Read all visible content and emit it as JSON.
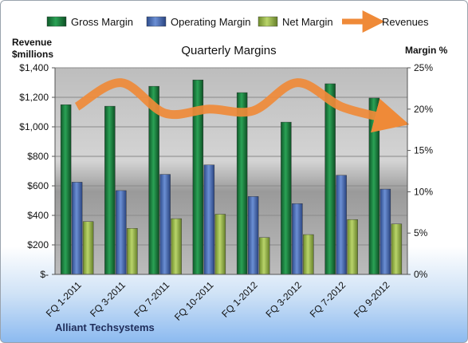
{
  "chart_data": {
    "type": "bar",
    "title": "Quarterly Margins",
    "company": "Alliant Techsystems",
    "left_axis_title": [
      "Revenue",
      "$millions"
    ],
    "right_axis_title": "Margin %",
    "categories": [
      "FQ 1-2011",
      "FQ 3-2011",
      "FQ 7-2011",
      "FQ 10-2011",
      "FQ 1-2012",
      "FQ 3-2012",
      "FQ 7-2012",
      "FQ 9-2012"
    ],
    "left_ticks": [
      "$-",
      "$200",
      "$400",
      "$600",
      "$800",
      "$1,000",
      "$1,200",
      "$1,400"
    ],
    "right_ticks": [
      "0%",
      "5%",
      "10%",
      "15%",
      "20%",
      "25%"
    ],
    "left_range": [
      0,
      1400
    ],
    "right_range": [
      0,
      25
    ],
    "series": [
      {
        "name": "Gross Margin",
        "axis": "left",
        "values": [
          1150,
          1140,
          1275,
          1318,
          1232,
          1032,
          1292,
          1195
        ],
        "color": "#1e8a45"
      },
      {
        "name": "Operating Margin",
        "axis": "left",
        "values": [
          625,
          568,
          678,
          742,
          528,
          480,
          672,
          578
        ],
        "color": "#4a6fb8"
      },
      {
        "name": "Net Margin",
        "axis": "left",
        "values": [
          358,
          312,
          378,
          408,
          250,
          270,
          372,
          342
        ],
        "color": "#9bbb4a"
      },
      {
        "name": "Revenues",
        "axis": "right",
        "type": "line",
        "values": [
          20.3,
          23.2,
          19.5,
          20.0,
          19.8,
          23.2,
          20.3,
          18.9
        ],
        "color": "#ef8a38"
      }
    ],
    "grid": true,
    "legend_position": "top"
  }
}
